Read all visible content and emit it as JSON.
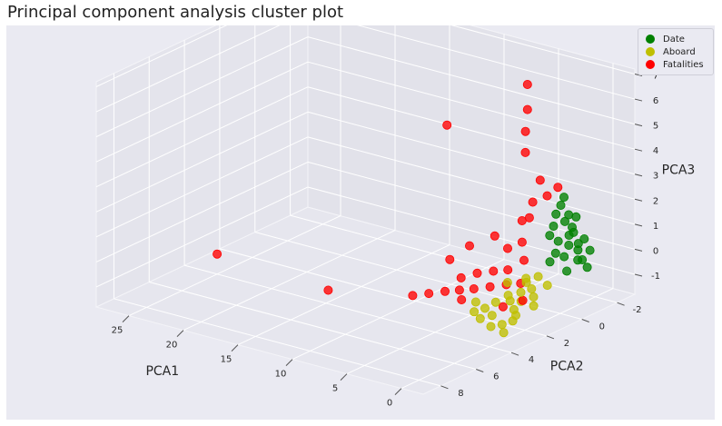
{
  "chart_data": {
    "type": "scatter",
    "projection": "3d",
    "title": "Principal component analysis cluster plot",
    "axes": {
      "x": {
        "label": "PCA1",
        "ticks": [
          0,
          5,
          10,
          15,
          20,
          25
        ],
        "range": [
          -2,
          28
        ]
      },
      "y": {
        "label": "PCA2",
        "ticks": [
          -2,
          0,
          2,
          4,
          6,
          8
        ],
        "range": [
          -3,
          9
        ]
      },
      "z": {
        "label": "PCA3",
        "ticks": [
          -1,
          0,
          1,
          2,
          3,
          4,
          5,
          6,
          7
        ],
        "range": [
          -1.8,
          7.2
        ]
      }
    },
    "grid": true,
    "legend_position": "top-right",
    "series": [
      {
        "name": "Date",
        "color": "#008000",
        "points": [
          [
            0.0,
            -1.0,
            0.0
          ],
          [
            0.3,
            -1.2,
            0.3
          ],
          [
            0.5,
            -0.8,
            0.6
          ],
          [
            0.8,
            -1.0,
            0.9
          ],
          [
            1.0,
            -1.3,
            1.1
          ],
          [
            0.2,
            -0.5,
            -0.3
          ],
          [
            0.6,
            -0.6,
            0.2
          ],
          [
            1.2,
            -1.5,
            0.8
          ],
          [
            1.5,
            -1.2,
            1.3
          ],
          [
            0.9,
            -0.3,
            0.4
          ],
          [
            1.3,
            -0.7,
            0.7
          ],
          [
            0.4,
            -1.5,
            -0.2
          ],
          [
            1.8,
            -1.6,
            1.4
          ],
          [
            2.0,
            -1.0,
            1.6
          ],
          [
            0.7,
            -1.8,
            0.5
          ],
          [
            1.1,
            -0.1,
            0.1
          ],
          [
            1.6,
            -0.4,
            1.0
          ],
          [
            2.2,
            -1.4,
            1.8
          ],
          [
            0.1,
            -1.6,
            -0.5
          ],
          [
            1.4,
            -1.9,
            0.2
          ],
          [
            2.4,
            -1.7,
            2.0
          ],
          [
            0.8,
            -1.4,
            1.5
          ],
          [
            1.9,
            -0.8,
            1.2
          ],
          [
            0.5,
            -2.0,
            0.0
          ]
        ]
      },
      {
        "name": "Aboard",
        "color": "#bfbf00",
        "points": [
          [
            0.0,
            1.5,
            -1.0
          ],
          [
            0.5,
            1.2,
            -0.8
          ],
          [
            1.0,
            1.0,
            -0.6
          ],
          [
            1.5,
            1.3,
            -0.7
          ],
          [
            2.0,
            1.6,
            -1.0
          ],
          [
            0.5,
            2.2,
            -1.2
          ],
          [
            1.0,
            2.0,
            -1.1
          ],
          [
            2.5,
            1.4,
            -0.9
          ],
          [
            3.0,
            1.8,
            -1.1
          ],
          [
            0.2,
            0.6,
            -0.5
          ],
          [
            1.2,
            0.5,
            -0.3
          ],
          [
            1.8,
            0.8,
            -0.5
          ],
          [
            3.5,
            2.1,
            -1.3
          ],
          [
            4.0,
            2.4,
            -1.4
          ],
          [
            2.2,
            2.5,
            -1.3
          ],
          [
            0.8,
            2.8,
            -1.4
          ],
          [
            1.5,
            3.0,
            -1.5
          ],
          [
            2.8,
            2.8,
            -1.4
          ],
          [
            0.0,
            3.2,
            -1.5
          ],
          [
            3.2,
            1.0,
            -0.6
          ],
          [
            4.5,
            2.0,
            -1.2
          ],
          [
            1.0,
            1.6,
            -0.9
          ],
          [
            2.0,
            0.7,
            -0.4
          ],
          [
            0.3,
            2.5,
            -1.3
          ]
        ]
      },
      {
        "name": "Fatalities",
        "color": "#ff0000",
        "points": [
          [
            2.0,
            1.0,
            -0.5
          ],
          [
            3.0,
            1.2,
            -0.6
          ],
          [
            4.0,
            1.5,
            -0.7
          ],
          [
            5.0,
            1.8,
            -0.8
          ],
          [
            6.0,
            2.0,
            -0.9
          ],
          [
            7.0,
            2.2,
            -1.0
          ],
          [
            8.0,
            2.5,
            -1.1
          ],
          [
            9.0,
            2.8,
            -1.2
          ],
          [
            3.5,
            0.8,
            -0.2
          ],
          [
            4.5,
            1.0,
            -0.3
          ],
          [
            5.5,
            1.3,
            -0.4
          ],
          [
            6.5,
            1.6,
            -0.6
          ],
          [
            2.5,
            0.5,
            0.2
          ],
          [
            3.0,
            0.3,
            0.8
          ],
          [
            3.5,
            0.0,
            1.5
          ],
          [
            2.0,
            -0.5,
            2.5
          ],
          [
            3.0,
            -0.3,
            2.2
          ],
          [
            2.5,
            0.2,
            1.8
          ],
          [
            4.0,
            0.5,
            0.5
          ],
          [
            1.5,
            -0.8,
            2.8
          ],
          [
            2.8,
            -0.6,
            3.0
          ],
          [
            7.5,
            0.5,
            0.2
          ],
          [
            8.5,
            1.0,
            -0.3
          ],
          [
            6.0,
            0.0,
            0.6
          ],
          [
            4.0,
            -0.5,
            4.0
          ],
          [
            3.5,
            -0.2,
            5.0
          ],
          [
            3.0,
            0.0,
            6.0
          ],
          [
            3.0,
            0.0,
            7.0
          ],
          [
            12.0,
            -1.0,
            4.0
          ],
          [
            25.0,
            4.0,
            -1.0
          ],
          [
            14.0,
            4.5,
            -1.0
          ],
          [
            5.0,
            2.5,
            -1.0
          ],
          [
            2.0,
            2.0,
            -1.1
          ],
          [
            1.0,
            1.5,
            -0.9
          ]
        ]
      }
    ]
  }
}
